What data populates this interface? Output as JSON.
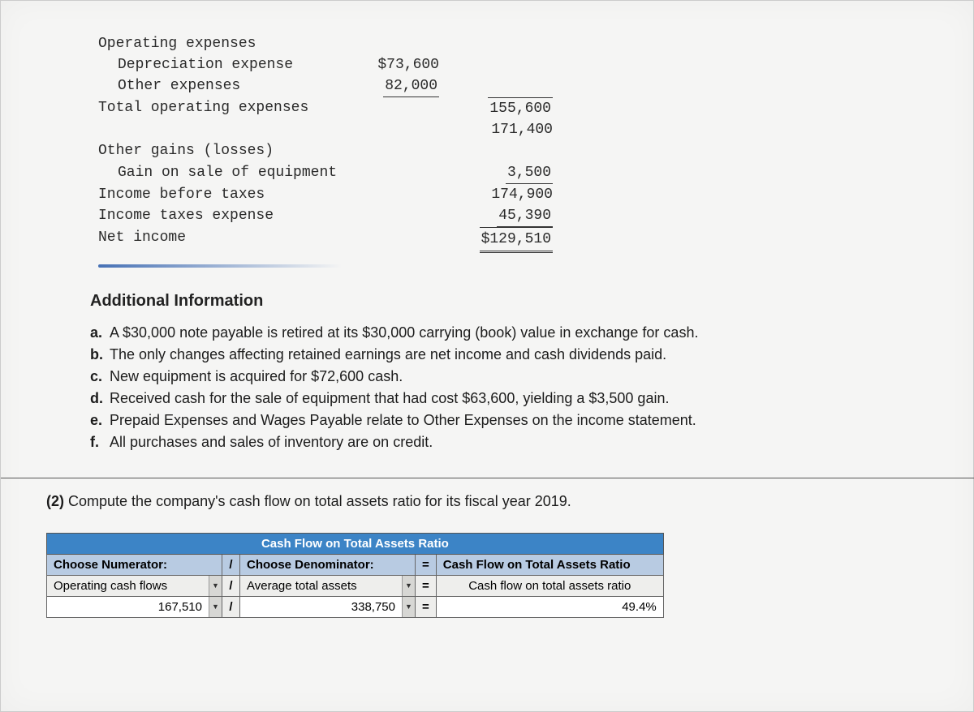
{
  "income_statement": {
    "rows": [
      {
        "label": "Operating expenses",
        "indent": false,
        "col1": "",
        "col2": ""
      },
      {
        "label": "Depreciation expense",
        "indent": true,
        "col1": "$73,600",
        "col2": ""
      },
      {
        "label": "Other expenses",
        "indent": true,
        "col1": "82,000",
        "col1_underline": true,
        "col2": ""
      },
      {
        "label": "Total operating expenses",
        "indent": false,
        "col1": "",
        "col2": "155,600",
        "col2_topline": true
      },
      {
        "label": "",
        "indent": false,
        "col1": "",
        "col2": "171,400"
      },
      {
        "label": "Other gains (losses)",
        "indent": false,
        "col1": "",
        "col2": ""
      },
      {
        "label": "Gain on sale of equipment",
        "indent": true,
        "col1": "",
        "col2": "3,500",
        "col2_underline": true
      },
      {
        "label": "Income before taxes",
        "indent": false,
        "col1": "",
        "col2": "174,900"
      },
      {
        "label": "Income taxes expense",
        "indent": false,
        "col1": "",
        "col2": "45,390",
        "col2_underline": true
      },
      {
        "label": "Net income",
        "indent": false,
        "col1": "",
        "col2": "$129,510",
        "col2_net": true
      }
    ]
  },
  "additional_info": {
    "title": "Additional Information",
    "items": [
      {
        "bullet": "a.",
        "text": "A $30,000 note payable is retired at its $30,000 carrying (book) value in exchange for cash."
      },
      {
        "bullet": "b.",
        "text": "The only changes affecting retained earnings are net income and cash dividends paid."
      },
      {
        "bullet": "c.",
        "text": "New equipment is acquired for $72,600 cash."
      },
      {
        "bullet": "d.",
        "text": "Received cash for the sale of equipment that had cost $63,600, yielding a $3,500 gain."
      },
      {
        "bullet": "e.",
        "text": "Prepaid Expenses and Wages Payable relate to Other Expenses on the income statement."
      },
      {
        "bullet": "f.",
        "text": "All purchases and sales of inventory are on credit."
      }
    ]
  },
  "question": {
    "number": "(2)",
    "text": "Compute the company's cash flow on total assets ratio for its fiscal year 2019."
  },
  "ratio_table": {
    "title": "Cash Flow on Total Assets Ratio",
    "numerator_label": "Choose Numerator:",
    "denominator_label": "Choose Denominator:",
    "result_label": "Cash Flow on Total Assets Ratio",
    "numerator_choice": "Operating cash flows",
    "denominator_choice": "Average total assets",
    "result_row_label": "Cash flow on total assets ratio",
    "numerator_value": "167,510",
    "denominator_value": "338,750",
    "result_value": "49.4%",
    "divider": "/",
    "equals": "="
  }
}
